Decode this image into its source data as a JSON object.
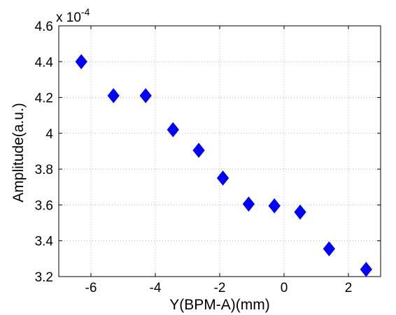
{
  "chart_data": {
    "type": "scatter",
    "title": "",
    "xlabel": "Y(BPM-A)(mm)",
    "ylabel": "Amplitude(a.u.)",
    "y_multiplier": {
      "base": "x 10",
      "exponent": "-4"
    },
    "xlim": [
      -7,
      3
    ],
    "ylim": [
      3.2,
      4.6
    ],
    "x_ticks": [
      -6,
      -4,
      -2,
      0,
      2
    ],
    "x_tick_labels": [
      "-6",
      "-4",
      "-2",
      "0",
      "2"
    ],
    "y_ticks": [
      3.2,
      3.4,
      3.6,
      3.8,
      4.0,
      4.2,
      4.4,
      4.6
    ],
    "y_tick_labels": [
      "3.2",
      "3.4",
      "3.6",
      "3.8",
      "4",
      "4.2",
      "4.4",
      "4.6"
    ],
    "grid": true,
    "marker": "diamond",
    "marker_color": "#0000ff",
    "series": [
      {
        "x": [
          -6.3,
          -5.3,
          -4.3,
          -3.45,
          -2.65,
          -1.9,
          -1.1,
          -0.3,
          0.5,
          1.4,
          2.55
        ],
        "y": [
          4.4,
          4.21,
          4.21,
          4.02,
          3.905,
          3.75,
          3.605,
          3.595,
          3.56,
          3.355,
          3.24
        ]
      }
    ]
  }
}
